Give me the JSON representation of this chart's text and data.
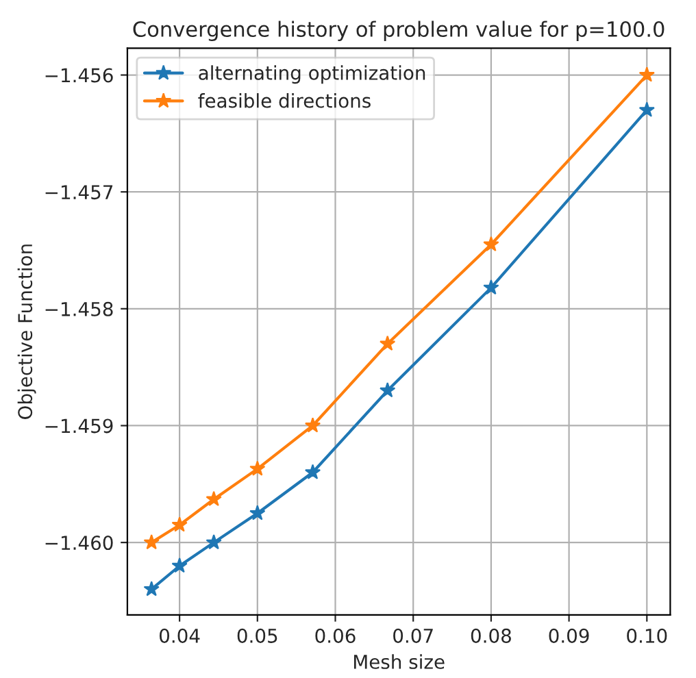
{
  "chart_data": {
    "type": "line",
    "title": "Convergence history of problem value for p=100.0",
    "xlabel": "Mesh size",
    "ylabel": "Objective Function",
    "x": [
      0.0364,
      0.04,
      0.0444,
      0.05,
      0.0571,
      0.0667,
      0.08,
      0.1
    ],
    "series": [
      {
        "name": "alternating optimization",
        "color": "#1f77b4",
        "values": [
          -1.4604,
          -1.4602,
          -1.46,
          -1.45975,
          -1.4594,
          -1.4587,
          -1.45782,
          -1.4563
        ]
      },
      {
        "name": "feasible directions",
        "color": "#ff7f0e",
        "values": [
          -1.46,
          -1.45985,
          -1.45963,
          -1.45937,
          -1.459,
          -1.4583,
          -1.45745,
          -1.456
        ]
      }
    ],
    "xlim": [
      0.0333,
      0.103
    ],
    "ylim": [
      -1.46062,
      -1.45577
    ],
    "xticks": [
      0.04,
      0.05,
      0.06,
      0.07,
      0.08,
      0.09,
      {
        "value": 0.1,
        "label": "0.10"
      }
    ],
    "yticks": [
      {
        "value": -1.46,
        "label": "−1.460"
      },
      {
        "value": -1.459,
        "label": "−1.459"
      },
      {
        "value": -1.458,
        "label": "−1.458"
      },
      {
        "value": -1.457,
        "label": "−1.457"
      },
      {
        "value": -1.456,
        "label": "−1.456"
      }
    ],
    "grid": true,
    "legend": "top left",
    "marker": "star",
    "line_style": "solid"
  }
}
